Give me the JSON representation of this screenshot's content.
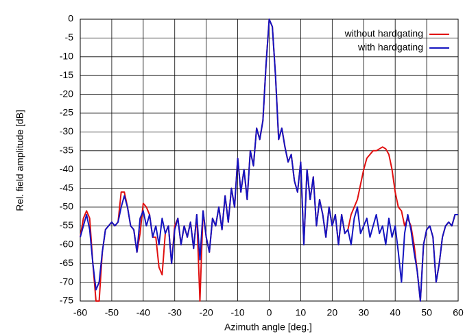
{
  "chart_data": {
    "type": "line",
    "xlabel": "Azimuth angle [deg.]",
    "ylabel": "Rel. field amplitude [dB]",
    "x": [
      -60,
      -59,
      -58,
      -57,
      -56,
      -55,
      -54,
      -53,
      -52,
      -51,
      -50,
      -49,
      -48,
      -47,
      -46,
      -45,
      -44,
      -43,
      -42,
      -41,
      -40,
      -39,
      -38,
      -37,
      -36,
      -35,
      -34,
      -33,
      -32,
      -31,
      -30,
      -29,
      -28,
      -27,
      -26,
      -25,
      -24,
      -23,
      -22,
      -21,
      -20,
      -19,
      -18,
      -17,
      -16,
      -15,
      -14,
      -13,
      -12,
      -11,
      -10,
      -9,
      -8,
      -7,
      -6,
      -5,
      -4,
      -3,
      -2,
      -1,
      0,
      1,
      2,
      3,
      4,
      5,
      6,
      7,
      8,
      9,
      10,
      11,
      12,
      13,
      14,
      15,
      16,
      17,
      18,
      19,
      20,
      21,
      22,
      23,
      24,
      25,
      26,
      27,
      28,
      29,
      30,
      31,
      32,
      33,
      34,
      35,
      36,
      37,
      38,
      39,
      40,
      41,
      42,
      43,
      44,
      45,
      46,
      47,
      48,
      49,
      50,
      51,
      52,
      53,
      54,
      55,
      56,
      57,
      58,
      59,
      60
    ],
    "series": [
      {
        "name": "without hardgating",
        "color": "#e01010",
        "values": [
          -58,
          -53,
          -51,
          -53,
          -65,
          -75,
          -75,
          -62,
          -56,
          -55,
          -54,
          -55,
          -54,
          -46,
          -46,
          -50,
          -55,
          -56,
          -62,
          -57,
          -49,
          -50,
          -52,
          -58,
          -58,
          -66,
          -68,
          -57,
          -55,
          -65,
          -55,
          -53,
          -60,
          -55,
          -58,
          -54,
          -61,
          -52,
          -75,
          -51,
          -58,
          -62,
          -53,
          -55,
          -50,
          -56,
          -47,
          -54,
          -45,
          -50,
          -37,
          -46,
          -40,
          -48,
          -35,
          -39,
          -29,
          -32,
          -27,
          -12,
          0,
          -2,
          -15,
          -32,
          -29,
          -34,
          -38,
          -36,
          -43,
          -46,
          -38,
          -60,
          -40,
          -48,
          -42,
          -55,
          -48,
          -52,
          -58,
          -50,
          -55,
          -52,
          -60,
          -52,
          -57,
          -56,
          -52,
          -50,
          -48,
          -44,
          -40,
          -37,
          -36,
          -35,
          -35,
          -34.5,
          -34,
          -34.5,
          -36,
          -40,
          -46,
          -50,
          -51,
          -55,
          -53,
          -55,
          -60,
          -67,
          -75,
          -60,
          -56,
          -55,
          -58,
          -70,
          -65,
          -58,
          -55,
          -54,
          -55,
          -52,
          -52
        ]
      },
      {
        "name": "with hardgating",
        "color": "#1414c0",
        "values": [
          -58,
          -55,
          -52,
          -56,
          -65,
          -72,
          -70,
          -62,
          -56,
          -55,
          -54,
          -55,
          -54,
          -50,
          -47,
          -50,
          -55,
          -56,
          -62,
          -53,
          -51,
          -55,
          -52,
          -58,
          -55,
          -60,
          -53,
          -57,
          -55,
          -65,
          -56,
          -53,
          -60,
          -55,
          -58,
          -54,
          -61,
          -52,
          -64,
          -51,
          -58,
          -62,
          -53,
          -55,
          -50,
          -56,
          -47,
          -54,
          -45,
          -50,
          -37,
          -46,
          -40,
          -48,
          -35,
          -39,
          -29,
          -32,
          -27,
          -12,
          0,
          -2,
          -15,
          -32,
          -29,
          -34,
          -38,
          -36,
          -43,
          -46,
          -38,
          -60,
          -40,
          -48,
          -42,
          -55,
          -48,
          -52,
          -58,
          -50,
          -55,
          -52,
          -60,
          -52,
          -57,
          -56,
          -60,
          -53,
          -50,
          -57,
          -55,
          -53,
          -58,
          -55,
          -52,
          -57,
          -55,
          -60,
          -53,
          -58,
          -55,
          -62,
          -70,
          -57,
          -52,
          -56,
          -62,
          -67,
          -75,
          -60,
          -56,
          -55,
          -58,
          -70,
          -65,
          -58,
          -55,
          -54,
          -55,
          -52,
          -52
        ]
      }
    ],
    "xlim": [
      -60,
      60
    ],
    "ylim": [
      -75,
      0
    ],
    "xticks": [
      -60,
      -50,
      -40,
      -30,
      -20,
      -10,
      0,
      10,
      20,
      30,
      40,
      50,
      60
    ],
    "yticks": [
      0,
      -5,
      -10,
      -15,
      -20,
      -25,
      -30,
      -35,
      -40,
      -45,
      -50,
      -55,
      -60,
      -65,
      -70,
      -75
    ],
    "grid": true,
    "legend": "upper-right"
  }
}
